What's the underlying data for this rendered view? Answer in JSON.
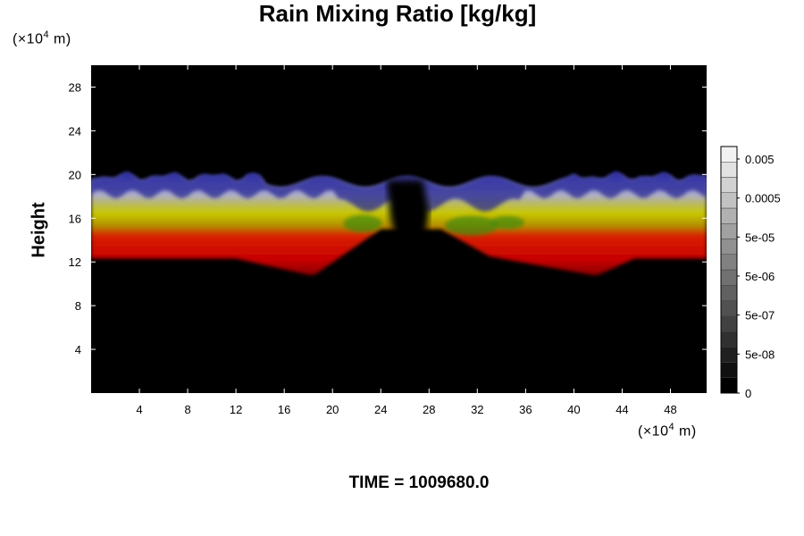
{
  "chart_data": {
    "type": "heatmap",
    "title": "Rain Mixing Ratio [kg/kg]",
    "xlabel": "",
    "ylabel": "Height",
    "x_unit": "(×10⁴ m)",
    "y_unit": "(×10⁴ m)",
    "xlim": [
      0,
      51
    ],
    "ylim": [
      0,
      30
    ],
    "x_ticks": [
      4,
      8,
      12,
      16,
      20,
      24,
      28,
      32,
      36,
      40,
      44,
      48
    ],
    "y_ticks": [
      4,
      8,
      12,
      16,
      20,
      24,
      28
    ],
    "colorbar": {
      "labels": [
        "0.005",
        "0.0005",
        "5e-05",
        "5e-06",
        "5e-07",
        "5e-08",
        "0"
      ],
      "levels": 16,
      "colors": [
        "#000000",
        "#f2f2f2"
      ]
    },
    "background_color": "#000000",
    "bands": [
      {
        "name": "red",
        "color": "#cc0000"
      },
      {
        "name": "yellow",
        "color": "#b8b800"
      },
      {
        "name": "blue",
        "color": "#2a2aaa"
      }
    ],
    "caption": "TIME = 1009680.0"
  }
}
